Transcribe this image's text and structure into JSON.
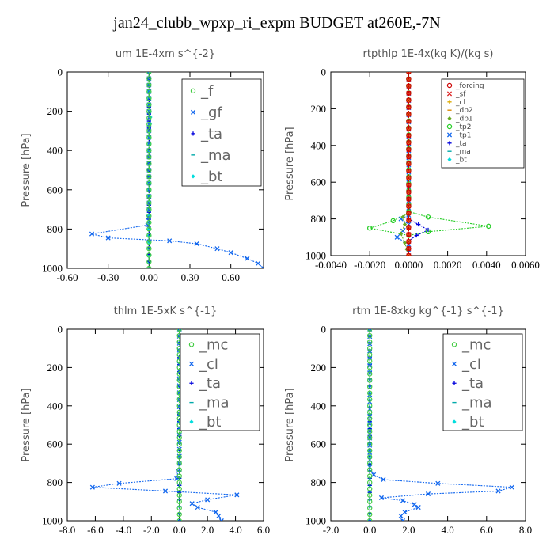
{
  "title": "jan24_clubb_wpxp_ri_expm  BUDGET at260E,-7N",
  "chart_data": [
    {
      "type": "line",
      "title": "um   1E-4xm  s^{-2}",
      "ylabel": "Pressure [hPa]",
      "xlim": [
        -0.6,
        0.84
      ],
      "ylim": [
        1000,
        0
      ],
      "xticks": [
        "-0.60",
        "-0.30",
        "0.00",
        "0.30",
        "0.60"
      ],
      "xtick_values": [
        -0.6,
        -0.3,
        0.0,
        0.3,
        0.6
      ],
      "yticks": [
        "0",
        "200",
        "400",
        "600",
        "800",
        "1000"
      ],
      "ytick_values": [
        0,
        200,
        400,
        600,
        800,
        1000
      ],
      "legend_style": "big",
      "series": [
        {
          "name": "_f",
          "color": "#44cc44",
          "marker": "o",
          "points": [
            [
              0,
              0
            ],
            [
              0,
              100
            ],
            [
              0,
              200
            ],
            [
              0,
              300
            ],
            [
              0,
              400
            ],
            [
              0,
              500
            ],
            [
              0,
              600
            ],
            [
              0,
              700
            ],
            [
              0,
              800
            ],
            [
              0,
              900
            ],
            [
              0,
              1000
            ]
          ]
        },
        {
          "name": "_gf",
          "color": "#1166ee",
          "marker": "x",
          "points": [
            [
              0,
              0
            ],
            [
              0,
              200
            ],
            [
              0,
              400
            ],
            [
              0,
              600
            ],
            [
              0,
              700
            ],
            [
              -0.01,
              780
            ],
            [
              -0.42,
              825
            ],
            [
              -0.3,
              845
            ],
            [
              0.15,
              860
            ],
            [
              0.35,
              875
            ],
            [
              0.5,
              900
            ],
            [
              0.6,
              920
            ],
            [
              0.72,
              950
            ],
            [
              0.8,
              975
            ],
            [
              0.84,
              1000
            ]
          ]
        },
        {
          "name": "_ta",
          "color": "#0000dd",
          "marker": "+",
          "points": [
            [
              0,
              0
            ],
            [
              0,
              1000
            ]
          ]
        },
        {
          "name": "_ma",
          "color": "#00aaaa",
          "marker": "-",
          "points": [
            [
              0,
              0
            ],
            [
              0,
              1000
            ]
          ]
        },
        {
          "name": "_bt",
          "color": "#00dddd",
          "marker": "d",
          "points": [
            [
              0,
              0
            ],
            [
              0,
              100
            ],
            [
              0.005,
              200
            ],
            [
              0.01,
              230
            ],
            [
              0.005,
              300
            ],
            [
              0,
              400
            ],
            [
              0,
              500
            ],
            [
              0,
              600
            ],
            [
              0,
              700
            ],
            [
              0,
              800
            ],
            [
              0,
              900
            ],
            [
              0,
              1000
            ]
          ]
        }
      ]
    },
    {
      "type": "line",
      "title": "rtpthlp   1E-4x(kg K)/(kg s)",
      "ylabel": "Pressure [hPa]",
      "xlim": [
        -0.004,
        0.006
      ],
      "ylim": [
        1000,
        0
      ],
      "xticks": [
        "-0.0040",
        "-0.0020",
        "0.0000",
        "0.0020",
        "0.0040",
        "0.0060"
      ],
      "xtick_values": [
        -0.004,
        -0.002,
        0.0,
        0.002,
        0.004,
        0.006
      ],
      "yticks": [
        "0",
        "200",
        "400",
        "600",
        "800",
        "1000"
      ],
      "ytick_values": [
        0,
        200,
        400,
        600,
        800,
        1000
      ],
      "legend_style": "small",
      "series": [
        {
          "name": "_forcing",
          "color": "#cc0000",
          "marker": "o",
          "points": [
            [
              0,
              0
            ],
            [
              0,
              1000
            ]
          ]
        },
        {
          "name": "_sf",
          "color": "#dd2222",
          "marker": "x",
          "points": [
            [
              0,
              0
            ],
            [
              0,
              1000
            ]
          ]
        },
        {
          "name": "_cl",
          "color": "#ddaa00",
          "marker": "+",
          "points": [
            [
              0,
              0
            ],
            [
              0,
              1000
            ]
          ]
        },
        {
          "name": "_dp2",
          "color": "#dd8800",
          "marker": "-",
          "points": [
            [
              0,
              0
            ],
            [
              0,
              1000
            ]
          ]
        },
        {
          "name": "_dp1",
          "color": "#66aa22",
          "marker": "d",
          "points": [
            [
              0,
              0
            ],
            [
              0,
              760
            ],
            [
              -0.0003,
              790
            ],
            [
              -0.0002,
              830
            ],
            [
              -0.0004,
              880
            ],
            [
              -0.0002,
              930
            ],
            [
              0,
              1000
            ]
          ]
        },
        {
          "name": "_tp2",
          "color": "#22cc22",
          "marker": "o",
          "points": [
            [
              0,
              0
            ],
            [
              0,
              760
            ],
            [
              0.001,
              790
            ],
            [
              0.0041,
              840
            ],
            [
              0.001,
              870
            ],
            [
              0,
              890
            ],
            [
              -0.002,
              850
            ],
            [
              -0.0008,
              810
            ],
            [
              0,
              770
            ]
          ]
        },
        {
          "name": "_tp1",
          "color": "#1166ee",
          "marker": "x",
          "points": [
            [
              0,
              0
            ],
            [
              0,
              780
            ],
            [
              -0.0004,
              800
            ],
            [
              0,
              830
            ],
            [
              -0.0006,
              900
            ],
            [
              0,
              940
            ],
            [
              0,
              1000
            ]
          ]
        },
        {
          "name": "_ta",
          "color": "#0000dd",
          "marker": "+",
          "points": [
            [
              0,
              0
            ],
            [
              0,
              800
            ],
            [
              0.0005,
              830
            ],
            [
              0.001,
              860
            ],
            [
              0.0004,
              890
            ],
            [
              0,
              920
            ],
            [
              0,
              1000
            ]
          ]
        },
        {
          "name": "_ma",
          "color": "#00aaaa",
          "marker": "-",
          "points": [
            [
              0,
              0
            ],
            [
              0,
              1000
            ]
          ]
        },
        {
          "name": "_bt",
          "color": "#00dddd",
          "marker": "d",
          "points": [
            [
              0,
              0
            ],
            [
              0,
              1000
            ]
          ]
        }
      ]
    },
    {
      "type": "line",
      "title": "thlm   1E-5xK  s^{-1}",
      "ylabel": "Pressure [hPa]",
      "xlim": [
        -8.0,
        6.0
      ],
      "ylim": [
        1000,
        0
      ],
      "xticks": [
        "-8.0",
        "-6.0",
        "-4.0",
        "-2.0",
        "0.0",
        "2.0",
        "4.0",
        "6.0"
      ],
      "xtick_values": [
        -8,
        -6,
        -4,
        -2,
        0,
        2,
        4,
        6
      ],
      "yticks": [
        "0",
        "200",
        "400",
        "600",
        "800",
        "1000"
      ],
      "ytick_values": [
        0,
        200,
        400,
        600,
        800,
        1000
      ],
      "legend_style": "big",
      "series": [
        {
          "name": "_mc",
          "color": "#44cc44",
          "marker": "o",
          "points": [
            [
              0,
              0
            ],
            [
              0,
              100
            ],
            [
              0,
              200
            ],
            [
              0,
              300
            ],
            [
              0,
              400
            ],
            [
              0,
              500
            ],
            [
              0,
              600
            ],
            [
              0,
              700
            ],
            [
              0,
              800
            ],
            [
              0,
              900
            ],
            [
              0,
              1000
            ]
          ]
        },
        {
          "name": "_cl",
          "color": "#1166ee",
          "marker": "x",
          "points": [
            [
              0,
              0
            ],
            [
              0,
              700
            ],
            [
              -0.2,
              780
            ],
            [
              -4.3,
              805
            ],
            [
              -6.2,
              825
            ],
            [
              -1,
              845
            ],
            [
              4.1,
              865
            ],
            [
              2,
              890
            ],
            [
              0.9,
              910
            ],
            [
              1.3,
              930
            ],
            [
              2.6,
              955
            ],
            [
              2.8,
              975
            ],
            [
              3,
              1000
            ]
          ]
        },
        {
          "name": "_ta",
          "color": "#0000dd",
          "marker": "+",
          "points": [
            [
              0,
              0
            ],
            [
              0,
              1000
            ]
          ]
        },
        {
          "name": "_ma",
          "color": "#00aaaa",
          "marker": "-",
          "points": [
            [
              0,
              0
            ],
            [
              0,
              1000
            ]
          ]
        },
        {
          "name": "_bt",
          "color": "#00dddd",
          "marker": "d",
          "points": [
            [
              0,
              0
            ],
            [
              0,
              1000
            ]
          ]
        }
      ]
    },
    {
      "type": "line",
      "title": "rtm   1E-8xkg  kg^{-1}  s^{-1}",
      "ylabel": "Pressure [hPa]",
      "xlim": [
        -2.0,
        8.0
      ],
      "ylim": [
        1000,
        0
      ],
      "xticks": [
        "-2.0",
        "0.0",
        "2.0",
        "4.0",
        "6.0",
        "8.0"
      ],
      "xtick_values": [
        -2,
        0,
        2,
        4,
        6,
        8
      ],
      "yticks": [
        "0",
        "200",
        "400",
        "600",
        "800",
        "1000"
      ],
      "ytick_values": [
        0,
        200,
        400,
        600,
        800,
        1000
      ],
      "legend_style": "big",
      "series": [
        {
          "name": "_mc",
          "color": "#44cc44",
          "marker": "o",
          "points": [
            [
              0,
              0
            ],
            [
              0,
              100
            ],
            [
              0,
              200
            ],
            [
              0,
              300
            ],
            [
              0,
              400
            ],
            [
              0,
              500
            ],
            [
              0,
              600
            ],
            [
              0,
              700
            ],
            [
              0,
              800
            ],
            [
              0,
              900
            ],
            [
              0,
              1000
            ]
          ]
        },
        {
          "name": "_cl",
          "color": "#1166ee",
          "marker": "x",
          "points": [
            [
              0,
              0
            ],
            [
              0,
              720
            ],
            [
              0.2,
              760
            ],
            [
              0.7,
              785
            ],
            [
              3.5,
              805
            ],
            [
              7.3,
              825
            ],
            [
              6.6,
              845
            ],
            [
              3,
              860
            ],
            [
              0.6,
              880
            ],
            [
              1.7,
              895
            ],
            [
              2.3,
              915
            ],
            [
              2.5,
              930
            ],
            [
              1.8,
              955
            ],
            [
              1.6,
              975
            ],
            [
              1.7,
              1000
            ]
          ]
        },
        {
          "name": "_ta",
          "color": "#0000dd",
          "marker": "+",
          "points": [
            [
              0,
              0
            ],
            [
              0,
              1000
            ]
          ]
        },
        {
          "name": "_ma",
          "color": "#00aaaa",
          "marker": "-",
          "points": [
            [
              0,
              0
            ],
            [
              0,
              1000
            ]
          ]
        },
        {
          "name": "_bt",
          "color": "#00dddd",
          "marker": "d",
          "points": [
            [
              0,
              0
            ],
            [
              0,
              1000
            ]
          ]
        }
      ]
    }
  ]
}
